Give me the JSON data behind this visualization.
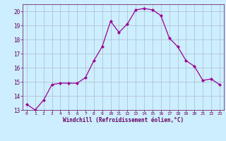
{
  "x": [
    0,
    1,
    2,
    3,
    4,
    5,
    6,
    7,
    8,
    9,
    10,
    11,
    12,
    13,
    14,
    15,
    16,
    17,
    18,
    19,
    20,
    21,
    22,
    23
  ],
  "y": [
    13.4,
    13.0,
    13.7,
    14.8,
    14.9,
    14.9,
    14.9,
    15.3,
    16.5,
    17.5,
    19.3,
    18.5,
    19.1,
    20.1,
    20.2,
    20.1,
    19.7,
    18.1,
    17.5,
    16.5,
    16.1,
    15.1,
    15.2,
    14.8
  ],
  "line_color": "#990099",
  "marker": "D",
  "marker_size": 2.0,
  "bg_color": "#cceeff",
  "grid_color": "#aabbcc",
  "xlabel": "Windchill (Refroidissement éolien,°C)",
  "xlabel_color": "#660066",
  "tick_color": "#660066",
  "ylim": [
    13,
    20.5
  ],
  "xlim": [
    -0.5,
    23.5
  ],
  "yticks": [
    13,
    14,
    15,
    16,
    17,
    18,
    19,
    20
  ],
  "xticks": [
    0,
    1,
    2,
    3,
    4,
    5,
    6,
    7,
    8,
    9,
    10,
    11,
    12,
    13,
    14,
    15,
    16,
    17,
    18,
    19,
    20,
    21,
    22,
    23
  ],
  "figsize": [
    3.2,
    2.0
  ],
  "dpi": 100
}
